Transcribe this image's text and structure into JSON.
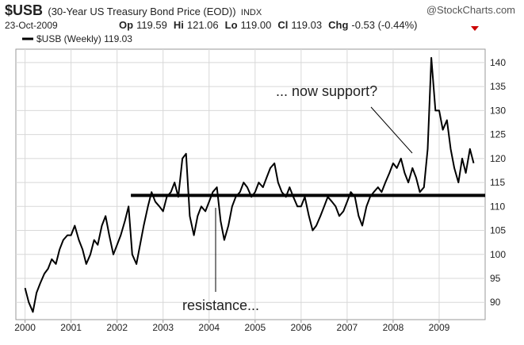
{
  "header": {
    "symbol": "$USB",
    "name": "(30-Year US Treasury Bond Price (EOD))",
    "exchange": "INDX",
    "source": "@StockCharts.com",
    "date": "23-Oct-2009",
    "quotes": [
      {
        "label": "Op",
        "value": "119.59"
      },
      {
        "label": "Hi",
        "value": "121.06"
      },
      {
        "label": "Lo",
        "value": "119.00"
      },
      {
        "label": "Cl",
        "value": "119.03"
      },
      {
        "label": "Chg",
        "value": "-0.53 (-0.44%)"
      }
    ]
  },
  "chart_data": {
    "type": "line",
    "x": [
      2000,
      2000.08,
      2000.17,
      2000.25,
      2000.33,
      2000.42,
      2000.5,
      2000.58,
      2000.67,
      2000.75,
      2000.83,
      2000.92,
      2001,
      2001.08,
      2001.17,
      2001.25,
      2001.33,
      2001.42,
      2001.5,
      2001.58,
      2001.67,
      2001.75,
      2001.83,
      2001.92,
      2002,
      2002.08,
      2002.17,
      2002.25,
      2002.33,
      2002.42,
      2002.5,
      2002.58,
      2002.67,
      2002.75,
      2002.83,
      2002.92,
      2003,
      2003.08,
      2003.17,
      2003.25,
      2003.33,
      2003.42,
      2003.5,
      2003.58,
      2003.67,
      2003.75,
      2003.83,
      2003.92,
      2004,
      2004.08,
      2004.17,
      2004.25,
      2004.33,
      2004.42,
      2004.5,
      2004.58,
      2004.67,
      2004.75,
      2004.83,
      2004.92,
      2005,
      2005.08,
      2005.17,
      2005.25,
      2005.33,
      2005.42,
      2005.5,
      2005.58,
      2005.67,
      2005.75,
      2005.83,
      2005.92,
      2006,
      2006.08,
      2006.17,
      2006.25,
      2006.33,
      2006.42,
      2006.5,
      2006.58,
      2006.67,
      2006.75,
      2006.83,
      2006.92,
      2007,
      2007.08,
      2007.17,
      2007.25,
      2007.33,
      2007.42,
      2007.5,
      2007.58,
      2007.67,
      2007.75,
      2007.83,
      2007.92,
      2008,
      2008.08,
      2008.17,
      2008.25,
      2008.33,
      2008.42,
      2008.5,
      2008.58,
      2008.67,
      2008.75,
      2008.83,
      2008.92,
      2009,
      2009.08,
      2009.17,
      2009.25,
      2009.33,
      2009.42,
      2009.5,
      2009.58,
      2009.67,
      2009.75
    ],
    "series": [
      {
        "name": "$USB (Weekly) 119.03",
        "color": "#000000",
        "values": [
          93,
          90,
          88,
          92,
          94,
          96,
          97,
          99,
          98,
          101,
          103,
          104,
          104,
          106,
          103,
          101,
          98,
          100,
          103,
          102,
          106,
          108,
          104,
          100,
          102,
          104,
          107,
          110,
          100,
          98,
          102,
          106,
          110,
          113,
          111,
          110,
          109,
          112,
          113,
          115,
          112,
          120,
          121,
          108,
          104,
          108,
          110,
          109,
          111,
          113,
          114,
          107,
          103,
          106,
          110,
          112,
          113,
          115,
          114,
          112,
          113,
          115,
          114,
          116,
          118,
          119,
          115,
          113,
          112,
          114,
          112,
          110,
          110,
          112,
          108,
          105,
          106,
          108,
          110,
          112,
          111,
          110,
          108,
          109,
          111,
          113,
          112,
          108,
          106,
          110,
          112,
          113,
          114,
          113,
          115,
          117,
          119,
          118,
          120,
          117,
          115,
          118,
          116,
          113,
          114,
          122,
          141,
          130,
          130,
          126,
          128,
          122,
          118,
          115,
          120,
          117,
          122,
          119.03
        ]
      }
    ],
    "support_line": {
      "value": 112.3,
      "start": 2002.3
    },
    "annotations": [
      "... now support?",
      "resistance..."
    ],
    "xlim": [
      1999.8,
      2010.0
    ],
    "xticks": [
      2000,
      2001,
      2002,
      2003,
      2004,
      2005,
      2006,
      2007,
      2008,
      2009
    ],
    "ylim": [
      86.4,
      142.8
    ],
    "yticks": [
      90,
      95,
      100,
      105,
      110,
      115,
      120,
      125,
      130,
      135,
      140
    ],
    "grid": true
  }
}
